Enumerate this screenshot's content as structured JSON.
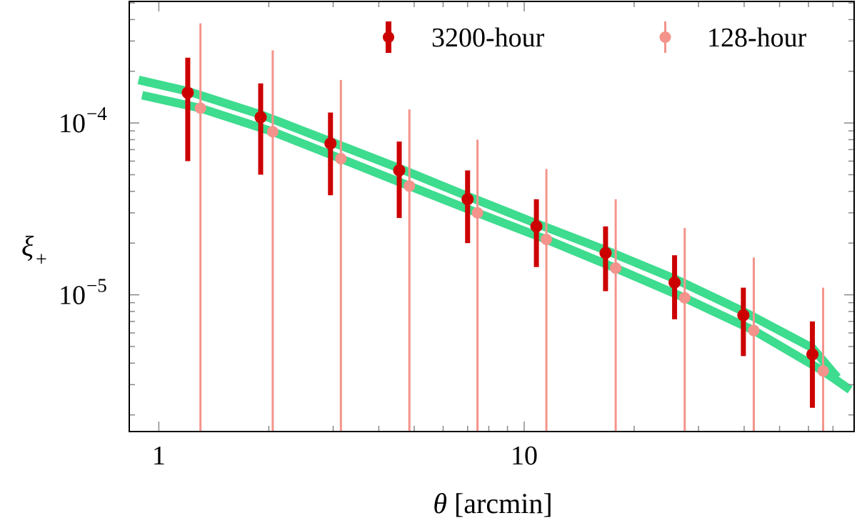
{
  "chart_data": {
    "type": "scatter",
    "title": "",
    "xlabel_symbol": "θ",
    "xlabel_unit": "[arcmin]",
    "ylabel_main": "ξ",
    "ylabel_sub": "+",
    "xscale": "log",
    "yscale": "log",
    "xlim": [
      0.83,
      80
    ],
    "ylim": [
      1.6e-06,
      0.00051
    ],
    "x_ticks": [
      {
        "value": 1,
        "label": "1"
      },
      {
        "value": 10,
        "label": "10"
      }
    ],
    "y_ticks": [
      {
        "value": 1e-05,
        "base": "10",
        "exponent": "−5"
      },
      {
        "value": 0.0001,
        "base": "10",
        "exponent": "−4"
      }
    ],
    "grid": false,
    "legend_position": "top-right",
    "colors": {
      "series_3200": "#cc0000",
      "series_128": "#f4938b",
      "model": "#3ddc8e"
    },
    "series": [
      {
        "name": "3200-hour",
        "color": "#cc0000",
        "x": [
          1.2,
          1.9,
          2.95,
          4.55,
          7.0,
          10.8,
          16.7,
          25.8,
          39.8,
          61.5
        ],
        "y": [
          0.00015,
          0.000108,
          7.6e-05,
          5.3e-05,
          3.6e-05,
          2.5e-05,
          1.75e-05,
          1.18e-05,
          7.6e-06,
          4.5e-06
        ],
        "yerr_low": [
          6e-05,
          5e-05,
          3.8e-05,
          2.8e-05,
          2e-05,
          1.45e-05,
          1.05e-05,
          7.2e-06,
          4.4e-06,
          2.2e-06
        ],
        "yerr_high": [
          0.00024,
          0.00017,
          0.000115,
          7.8e-05,
          5.3e-05,
          3.6e-05,
          2.5e-05,
          1.7e-05,
          1.1e-05,
          7e-06
        ]
      },
      {
        "name": "128-hour",
        "color": "#f4938b",
        "x": [
          1.3,
          2.05,
          3.15,
          4.85,
          7.45,
          11.5,
          17.8,
          27.5,
          42.5,
          65.8
        ],
        "y": [
          0.000122,
          8.9e-05,
          6.2e-05,
          4.3e-05,
          3e-05,
          2.1e-05,
          1.43e-05,
          9.6e-06,
          6.2e-06,
          3.6e-06
        ],
        "yerr_high": [
          0.00038,
          0.000265,
          0.000178,
          0.00012,
          8e-05,
          5.4e-05,
          3.6e-05,
          2.45e-05,
          1.65e-05,
          1.1e-05
        ]
      }
    ],
    "model_lines": [
      {
        "x": [
          0.88,
          1.2,
          1.9,
          2.95,
          4.55,
          7.0,
          10.8,
          16.7,
          25.8,
          39.8,
          61.5,
          72
        ],
        "y": [
          0.000178,
          0.000153,
          0.000112,
          7.8e-05,
          5.45e-05,
          3.75e-05,
          2.6e-05,
          1.82e-05,
          1.24e-05,
          8e-06,
          4.9e-06,
          3.3e-06
        ]
      },
      {
        "x": [
          0.9,
          1.3,
          2.05,
          3.15,
          4.85,
          7.45,
          11.5,
          17.8,
          27.5,
          42.5,
          65.8,
          78
        ],
        "y": [
          0.000145,
          0.000122,
          8.9e-05,
          6.2e-05,
          4.3e-05,
          3e-05,
          2.1e-05,
          1.43e-05,
          9.6e-06,
          6.2e-06,
          3.6e-06,
          2.8e-06
        ]
      }
    ]
  }
}
